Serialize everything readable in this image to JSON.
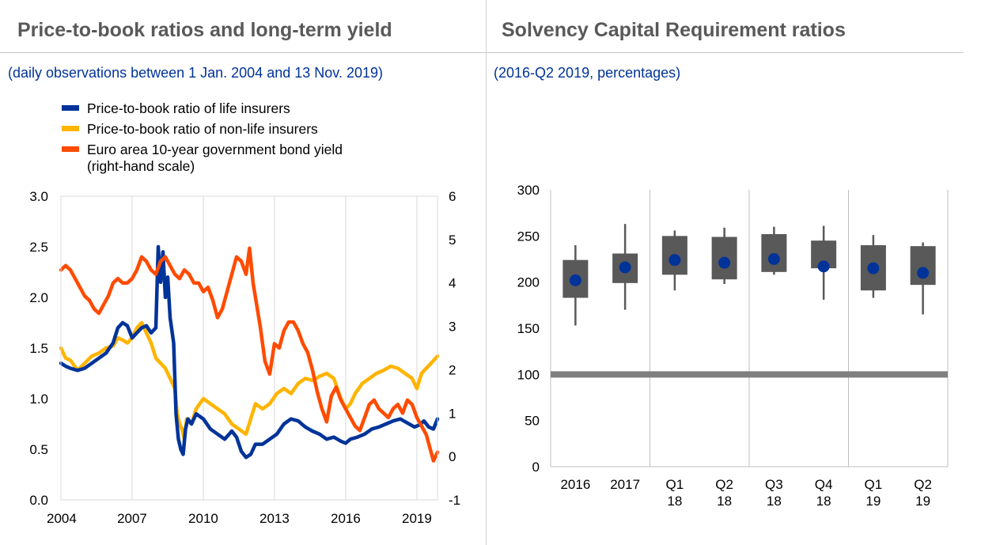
{
  "left_panel": {
    "title": "Price-to-book ratios and long-term yield",
    "subtitle": "(daily observations between 1 Jan. 2004 and 13 Nov. 2019)"
  },
  "right_panel": {
    "title": "Solvency Capital Requirement ratios",
    "subtitle": "(2016-Q2 2019, percentages)"
  },
  "chart_data": [
    {
      "type": "line",
      "legend": [
        {
          "label": "Price-to-book ratio of life insurers",
          "color": "#003399"
        },
        {
          "label": "Price-to-book ratio of non-life insurers",
          "color": "#FFB400"
        },
        {
          "label": "Euro area 10-year government bond yield",
          "label2": "(right-hand scale)",
          "color": "#FF4B00"
        }
      ],
      "x_ticks": [
        "2004",
        "2007",
        "2010",
        "2013",
        "2016",
        "2019"
      ],
      "x_tick_years": [
        2004,
        2007,
        2010,
        2013,
        2016,
        2019
      ],
      "xlim": [
        2004.0,
        2019.87
      ],
      "y_left": {
        "ticks": [
          "0.0",
          "0.5",
          "1.0",
          "1.5",
          "2.0",
          "2.5",
          "3.0"
        ],
        "lim": [
          0,
          3
        ]
      },
      "y_right": {
        "ticks": [
          "-1",
          "0",
          "1",
          "2",
          "3",
          "4",
          "5",
          "6"
        ],
        "lim": [
          -1,
          6
        ]
      },
      "series": [
        {
          "name": "Price-to-book ratio of non-life insurers",
          "axis": "left",
          "color": "#FFB400",
          "x": [
            2004.0,
            2004.2,
            2004.4,
            2004.7,
            2005.0,
            2005.3,
            2005.6,
            2005.9,
            2006.2,
            2006.4,
            2006.6,
            2006.8,
            2007.0,
            2007.2,
            2007.4,
            2007.6,
            2007.8,
            2008.0,
            2008.2,
            2008.4,
            2008.6,
            2008.8,
            2008.9,
            2009.0,
            2009.1,
            2009.2,
            2009.3,
            2009.5,
            2009.7,
            2010.0,
            2010.3,
            2010.6,
            2010.9,
            2011.2,
            2011.5,
            2011.8,
            2012.0,
            2012.2,
            2012.5,
            2012.8,
            2013.1,
            2013.4,
            2013.7,
            2014.0,
            2014.3,
            2014.6,
            2014.9,
            2015.2,
            2015.5,
            2015.8,
            2016.0,
            2016.2,
            2016.4,
            2016.7,
            2017.0,
            2017.3,
            2017.6,
            2017.9,
            2018.2,
            2018.5,
            2018.8,
            2019.0,
            2019.2,
            2019.4,
            2019.6,
            2019.87
          ],
          "values": [
            1.5,
            1.4,
            1.38,
            1.28,
            1.35,
            1.42,
            1.45,
            1.5,
            1.52,
            1.6,
            1.58,
            1.55,
            1.6,
            1.7,
            1.75,
            1.65,
            1.55,
            1.4,
            1.35,
            1.3,
            1.2,
            1.1,
            0.85,
            0.75,
            0.7,
            0.6,
            0.8,
            0.75,
            0.9,
            1.0,
            0.95,
            0.9,
            0.85,
            0.75,
            0.7,
            0.65,
            0.8,
            0.95,
            0.9,
            0.95,
            1.05,
            1.1,
            1.05,
            1.15,
            1.2,
            1.18,
            1.22,
            1.25,
            1.2,
            1.0,
            0.9,
            0.95,
            1.05,
            1.15,
            1.2,
            1.25,
            1.28,
            1.32,
            1.3,
            1.25,
            1.2,
            1.1,
            1.25,
            1.3,
            1.35,
            1.42
          ]
        },
        {
          "name": "Price-to-book ratio of life insurers",
          "axis": "left",
          "color": "#003399",
          "x": [
            2004.0,
            2004.2,
            2004.4,
            2004.7,
            2005.0,
            2005.3,
            2005.6,
            2005.9,
            2006.2,
            2006.4,
            2006.6,
            2006.8,
            2007.0,
            2007.2,
            2007.4,
            2007.6,
            2007.8,
            2008.0,
            2008.1,
            2008.2,
            2008.3,
            2008.4,
            2008.5,
            2008.6,
            2008.75,
            2008.85,
            2008.95,
            2009.05,
            2009.15,
            2009.25,
            2009.35,
            2009.5,
            2009.7,
            2010.0,
            2010.3,
            2010.6,
            2010.9,
            2011.2,
            2011.4,
            2011.6,
            2011.8,
            2012.0,
            2012.2,
            2012.5,
            2012.8,
            2013.1,
            2013.4,
            2013.7,
            2014.0,
            2014.3,
            2014.6,
            2014.9,
            2015.2,
            2015.5,
            2015.8,
            2016.0,
            2016.2,
            2016.5,
            2016.8,
            2017.1,
            2017.4,
            2017.7,
            2018.0,
            2018.3,
            2018.6,
            2018.9,
            2019.1,
            2019.3,
            2019.5,
            2019.7,
            2019.87
          ],
          "values": [
            1.35,
            1.32,
            1.3,
            1.28,
            1.3,
            1.35,
            1.4,
            1.45,
            1.55,
            1.7,
            1.75,
            1.72,
            1.6,
            1.65,
            1.7,
            1.72,
            1.65,
            1.7,
            2.5,
            2.15,
            2.45,
            2.0,
            2.2,
            1.8,
            1.55,
            0.85,
            0.6,
            0.5,
            0.45,
            0.7,
            0.8,
            0.75,
            0.85,
            0.8,
            0.7,
            0.65,
            0.6,
            0.68,
            0.62,
            0.48,
            0.42,
            0.45,
            0.55,
            0.55,
            0.6,
            0.65,
            0.75,
            0.8,
            0.78,
            0.72,
            0.68,
            0.65,
            0.6,
            0.62,
            0.58,
            0.56,
            0.6,
            0.62,
            0.65,
            0.7,
            0.72,
            0.75,
            0.78,
            0.8,
            0.76,
            0.72,
            0.74,
            0.78,
            0.72,
            0.7,
            0.8
          ]
        },
        {
          "name": "Euro area 10-year government bond yield",
          "axis": "right",
          "color": "#FF4B00",
          "x": [
            2004.0,
            2004.2,
            2004.4,
            2004.6,
            2004.8,
            2005.0,
            2005.2,
            2005.4,
            2005.6,
            2005.8,
            2006.0,
            2006.2,
            2006.4,
            2006.6,
            2006.8,
            2007.0,
            2007.2,
            2007.4,
            2007.6,
            2007.8,
            2008.0,
            2008.2,
            2008.4,
            2008.6,
            2008.8,
            2009.0,
            2009.2,
            2009.4,
            2009.6,
            2009.8,
            2010.0,
            2010.2,
            2010.4,
            2010.6,
            2010.8,
            2011.0,
            2011.2,
            2011.4,
            2011.6,
            2011.8,
            2011.95,
            2012.1,
            2012.25,
            2012.4,
            2012.6,
            2012.8,
            2013.0,
            2013.2,
            2013.4,
            2013.6,
            2013.8,
            2014.0,
            2014.2,
            2014.4,
            2014.6,
            2014.8,
            2015.0,
            2015.2,
            2015.4,
            2015.6,
            2015.8,
            2016.0,
            2016.2,
            2016.4,
            2016.6,
            2016.8,
            2017.0,
            2017.2,
            2017.4,
            2017.6,
            2017.8,
            2018.0,
            2018.2,
            2018.4,
            2018.6,
            2018.8,
            2019.0,
            2019.2,
            2019.4,
            2019.55,
            2019.7,
            2019.87
          ],
          "values": [
            4.3,
            4.4,
            4.3,
            4.1,
            3.9,
            3.7,
            3.6,
            3.4,
            3.3,
            3.5,
            3.7,
            4.0,
            4.1,
            4.0,
            4.0,
            4.1,
            4.3,
            4.6,
            4.5,
            4.3,
            4.2,
            4.5,
            4.6,
            4.4,
            4.2,
            4.1,
            4.3,
            4.2,
            4.0,
            4.0,
            3.8,
            3.9,
            3.6,
            3.2,
            3.4,
            3.8,
            4.2,
            4.6,
            4.5,
            4.2,
            4.8,
            4.0,
            3.5,
            3.0,
            2.2,
            1.9,
            2.6,
            2.5,
            2.9,
            3.1,
            3.1,
            2.9,
            2.6,
            2.4,
            2.0,
            1.5,
            1.1,
            0.8,
            1.4,
            1.6,
            1.3,
            1.1,
            0.9,
            0.7,
            0.6,
            0.9,
            1.2,
            1.3,
            1.1,
            1.0,
            0.9,
            1.1,
            1.2,
            1.0,
            1.3,
            1.2,
            0.9,
            0.7,
            0.5,
            0.2,
            -0.1,
            0.1
          ]
        }
      ]
    },
    {
      "type": "box",
      "categories": [
        [
          "2016"
        ],
        [
          "2017"
        ],
        [
          "Q1",
          "18"
        ],
        [
          "Q2",
          "18"
        ],
        [
          "Q3",
          "18"
        ],
        [
          "Q4",
          "18"
        ],
        [
          "Q1",
          "19"
        ],
        [
          "Q2",
          "19"
        ]
      ],
      "y_ticks": [
        "0",
        "50",
        "100",
        "150",
        "200",
        "250",
        "300"
      ],
      "ylim": [
        0,
        300
      ],
      "reference_line": 100,
      "colors": {
        "box": "#595959",
        "median": "#003399",
        "reference": "#7f7f7f"
      },
      "boxes": [
        {
          "whisker_low": 153,
          "q1": 183,
          "median": 202,
          "q3": 224,
          "whisker_high": 240
        },
        {
          "whisker_low": 170,
          "q1": 199,
          "median": 216,
          "q3": 231,
          "whisker_high": 263
        },
        {
          "whisker_low": 191,
          "q1": 208,
          "median": 224,
          "q3": 250,
          "whisker_high": 256
        },
        {
          "whisker_low": 198,
          "q1": 203,
          "median": 221,
          "q3": 249,
          "whisker_high": 259
        },
        {
          "whisker_low": 208,
          "q1": 211,
          "median": 225,
          "q3": 252,
          "whisker_high": 260
        },
        {
          "whisker_low": 181,
          "q1": 215,
          "median": 217,
          "q3": 245,
          "whisker_high": 261
        },
        {
          "whisker_low": 183,
          "q1": 191,
          "median": 215,
          "q3": 240,
          "whisker_high": 251
        },
        {
          "whisker_low": 165,
          "q1": 197,
          "median": 210,
          "q3": 239,
          "whisker_high": 243
        }
      ]
    }
  ]
}
